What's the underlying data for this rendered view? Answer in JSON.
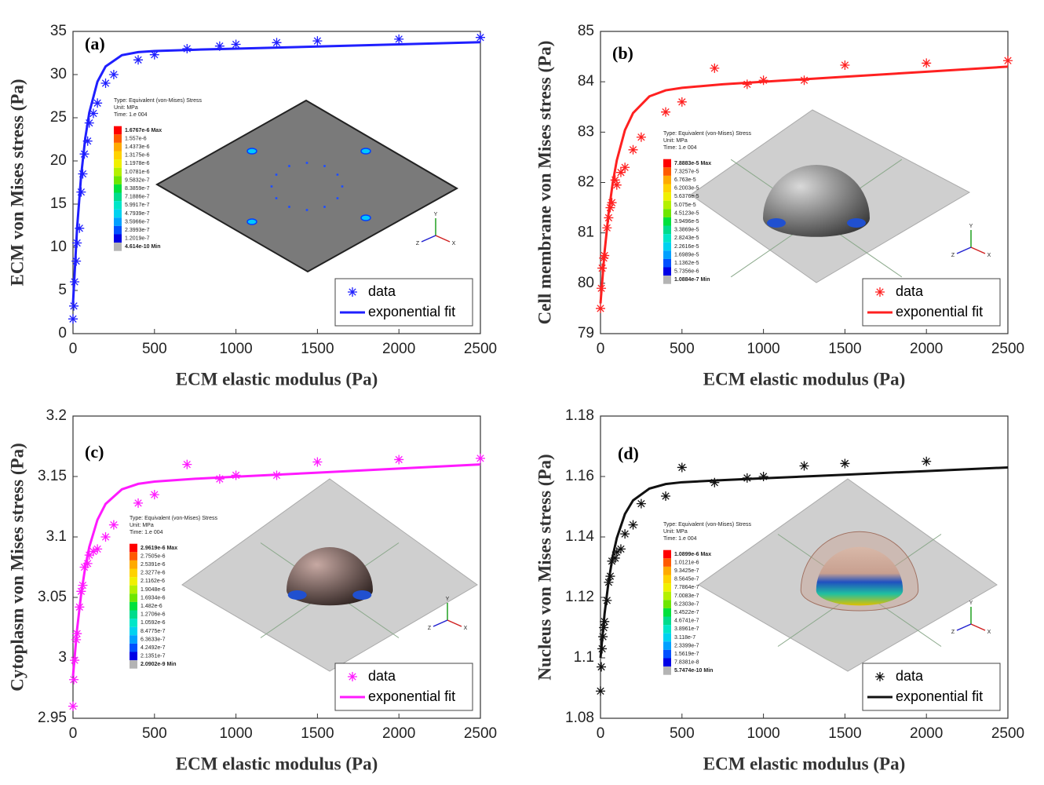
{
  "chart_data": [
    {
      "type": "scatter",
      "panel_label": "(a)",
      "x_label": "ECM elastic modulus (Pa)",
      "y_label": "ECM von Mises stress (Pa)",
      "xlim": [
        0,
        2500
      ],
      "xticks": [
        0,
        500,
        1000,
        1500,
        2000,
        2500
      ],
      "ylim": [
        0,
        35
      ],
      "yticks": [
        0,
        5,
        10,
        15,
        20,
        25,
        30,
        35
      ],
      "legend": "lower right",
      "series": [
        {
          "name": "data",
          "type": "scatter",
          "color": "#1f1fff",
          "x": [
            0,
            5,
            10,
            20,
            25,
            40,
            50,
            60,
            70,
            90,
            100,
            125,
            150,
            200,
            250,
            400,
            500,
            700,
            900,
            1000,
            1250,
            1500,
            2000,
            2500
          ],
          "values": [
            1.7,
            3.2,
            6,
            8.4,
            10.5,
            12.2,
            16.4,
            18.5,
            20.8,
            22.3,
            24.4,
            25.5,
            26.7,
            29,
            30,
            31.7,
            32.3,
            33,
            33.3,
            33.5,
            33.7,
            33.9,
            34.1,
            34.3
          ]
        },
        {
          "name": "exponential fit",
          "type": "line",
          "color": "#1f1fff",
          "x": [
            0,
            25,
            50,
            75,
            100,
            150,
            200,
            300,
            400,
            500,
            750,
            1000,
            1500,
            2000,
            2500
          ],
          "values": [
            3.5,
            12.22,
            18.33,
            22.61,
            25.6,
            29.18,
            30.94,
            32.25,
            32.6,
            32.73,
            32.88,
            33.0,
            33.25,
            33.5,
            33.75
          ]
        }
      ],
      "inset": {
        "title": [
          "Type: Equivalent (von-Mises) Stress",
          "Unit: MPa",
          "Time: 1.e 004"
        ],
        "colorbar_labels": [
          "1.6767e-6 Max",
          "1.557e-6",
          "1.4373e-6",
          "1.3175e-6",
          "1.1978e-6",
          "1.0781e-6",
          "9.5832e-7",
          "8.3859e-7",
          "7.1886e-7",
          "5.9917e-7",
          "4.7939e-7",
          "3.5966e-7",
          "2.3993e-7",
          "1.2019e-7",
          "4.614e-10 Min"
        ],
        "triad": [
          "Y",
          "X",
          "Z"
        ]
      }
    },
    {
      "type": "scatter",
      "panel_label": "(b)",
      "x_label": "ECM elastic modulus (Pa)",
      "y_label": "Cell membrane von Mises stress (Pa)",
      "xlim": [
        0,
        2500
      ],
      "xticks": [
        0,
        500,
        1000,
        1500,
        2000,
        2500
      ],
      "ylim": [
        79,
        85
      ],
      "yticks": [
        79,
        80,
        81,
        82,
        83,
        84,
        85
      ],
      "legend": "lower right",
      "series": [
        {
          "name": "data",
          "type": "scatter",
          "color": "#ff2020",
          "x": [
            0,
            5,
            10,
            20,
            25,
            40,
            50,
            60,
            70,
            90,
            100,
            125,
            150,
            200,
            250,
            400,
            500,
            700,
            900,
            1000,
            1250,
            1500,
            2000,
            2500
          ],
          "values": [
            79.5,
            79.9,
            80.3,
            80.5,
            80.55,
            81.1,
            81.3,
            81.5,
            81.6,
            82.05,
            81.95,
            82.2,
            82.3,
            82.65,
            82.9,
            83.4,
            83.6,
            84.27,
            83.95,
            84.03,
            84.03,
            84.33,
            84.37,
            84.42
          ]
        },
        {
          "name": "exponential fit",
          "type": "line",
          "color": "#ff2020",
          "x": [
            0,
            25,
            50,
            75,
            100,
            150,
            200,
            300,
            400,
            500,
            750,
            1000,
            1500,
            2000,
            2500
          ],
          "values": [
            79.6,
            80.62,
            81.4,
            81.99,
            82.44,
            83.04,
            83.38,
            83.71,
            83.83,
            83.88,
            83.95,
            84.0,
            84.1,
            84.2,
            84.3
          ]
        }
      ],
      "inset": {
        "title": [
          "Type: Equivalent (von-Mises) Stress",
          "Unit: MPa",
          "Time: 1.e 004"
        ],
        "colorbar_labels": [
          "7.8883e-5 Max",
          "7.3257e-5",
          "6.763e-5",
          "6.2003e-5",
          "5.6376e-5",
          "5.075e-5",
          "4.5123e-5",
          "3.9496e-5",
          "3.3869e-5",
          "2.8243e-5",
          "2.2616e-5",
          "1.6989e-5",
          "1.1362e-5",
          "5.7356e-6",
          "1.0884e-7 Min"
        ],
        "triad": [
          "Y",
          "X",
          "Z"
        ]
      }
    },
    {
      "type": "scatter",
      "panel_label": "(c)",
      "x_label": "ECM elastic modulus (Pa)",
      "y_label": "Cytoplasm von Mises stress (Pa)",
      "xlim": [
        0,
        2500
      ],
      "xticks": [
        0,
        500,
        1000,
        1500,
        2000,
        2500
      ],
      "ylim": [
        2.95,
        3.2
      ],
      "yticks": [
        2.95,
        3,
        3.05,
        3.1,
        3.15,
        3.2
      ],
      "legend": "lower right",
      "series": [
        {
          "name": "data",
          "type": "scatter",
          "color": "#ff1aff",
          "x": [
            0,
            5,
            10,
            20,
            25,
            40,
            50,
            60,
            70,
            90,
            100,
            125,
            150,
            200,
            250,
            400,
            500,
            700,
            900,
            1000,
            1250,
            1500,
            2000,
            2500
          ],
          "values": [
            2.96,
            2.982,
            2.998,
            3.015,
            3.02,
            3.042,
            3.055,
            3.06,
            3.075,
            3.078,
            3.085,
            3.088,
            3.09,
            3.1,
            3.11,
            3.128,
            3.135,
            3.16,
            3.148,
            3.151,
            3.151,
            3.162,
            3.164,
            3.165
          ]
        },
        {
          "name": "exponential fit",
          "type": "line",
          "color": "#ff1aff",
          "x": [
            0,
            25,
            50,
            75,
            100,
            150,
            200,
            300,
            400,
            500,
            750,
            1000,
            1500,
            2000,
            2500
          ],
          "values": [
            2.985,
            3.0235,
            3.0527,
            3.0748,
            3.0917,
            3.1142,
            3.1273,
            3.1394,
            3.1439,
            3.1458,
            3.1481,
            3.1498,
            3.1532,
            3.1566,
            3.16
          ]
        }
      ],
      "inset": {
        "title": [
          "Type: Equivalent (von-Mises) Stress",
          "Unit: MPa",
          "Time: 1.e 004"
        ],
        "colorbar_labels": [
          "2.9619e-6 Max",
          "2.7505e-6",
          "2.5391e-6",
          "2.3277e-6",
          "2.1162e-6",
          "1.9048e-6",
          "1.6934e-6",
          "1.482e-6",
          "1.2706e-6",
          "1.0592e-6",
          "8.4775e-7",
          "6.3633e-7",
          "4.2492e-7",
          "2.1351e-7",
          "2.0902e-9 Min"
        ],
        "triad": [
          "Y",
          "X",
          "Z"
        ]
      }
    },
    {
      "type": "scatter",
      "panel_label": "(d)",
      "x_label": "ECM elastic modulus (Pa)",
      "y_label": "Nucleus von Mises stress (Pa)",
      "xlim": [
        0,
        2500
      ],
      "xticks": [
        0,
        500,
        1000,
        1500,
        2000,
        2500
      ],
      "ylim": [
        1.08,
        1.18
      ],
      "yticks": [
        1.08,
        1.1,
        1.12,
        1.14,
        1.16,
        1.18
      ],
      "legend": "lower right",
      "series": [
        {
          "name": "data",
          "type": "scatter",
          "color": "#111111",
          "x": [
            0,
            5,
            10,
            15,
            20,
            25,
            40,
            50,
            60,
            70,
            90,
            100,
            125,
            150,
            200,
            250,
            400,
            500,
            700,
            900,
            1000,
            1250,
            1500,
            2000
          ],
          "values": [
            1.089,
            1.097,
            1.103,
            1.107,
            1.11,
            1.112,
            1.119,
            1.125,
            1.127,
            1.132,
            1.133,
            1.135,
            1.136,
            1.141,
            1.144,
            1.151,
            1.1535,
            1.163,
            1.158,
            1.1595,
            1.16,
            1.1635,
            1.1643,
            1.165
          ]
        },
        {
          "name": "exponential fit",
          "type": "line",
          "color": "#111111",
          "x": [
            0,
            25,
            50,
            75,
            100,
            150,
            200,
            300,
            400,
            500,
            750,
            1000,
            1500,
            2000,
            2500
          ],
          "values": [
            1.1,
            1.1146,
            1.1254,
            1.1336,
            1.1396,
            1.1476,
            1.1521,
            1.156,
            1.1575,
            1.1581,
            1.1588,
            1.1594,
            1.1606,
            1.1618,
            1.163
          ]
        }
      ],
      "inset": {
        "title": [
          "Type: Equivalent (von-Mises) Stress",
          "Unit: MPa",
          "Time: 1.e 004"
        ],
        "colorbar_labels": [
          "1.0899e-6 Max",
          "1.0121e-6",
          "9.3425e-7",
          "8.5645e-7",
          "7.7864e-7",
          "7.0083e-7",
          "6.2303e-7",
          "5.4522e-7",
          "4.6741e-7",
          "3.8961e-7",
          "3.118e-7",
          "2.3399e-7",
          "1.5619e-7",
          "7.8381e-8",
          "5.7474e-10 Min"
        ],
        "triad": [
          "Y",
          "X",
          "Z"
        ]
      }
    }
  ]
}
